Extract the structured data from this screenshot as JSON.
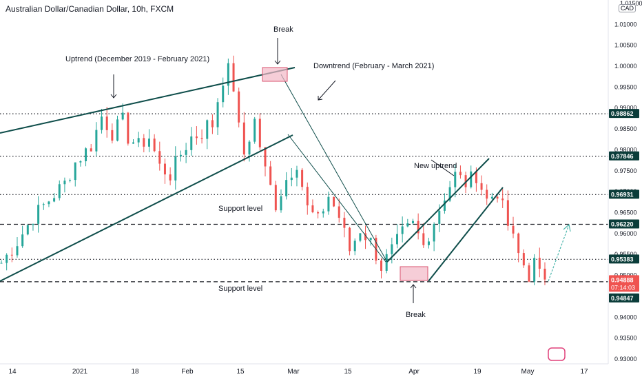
{
  "header": {
    "title": "Australian Dollar/Canadian Dollar, 10h, FXCM",
    "currency_top": "1.01500",
    "currency_badge": "CAD"
  },
  "colors": {
    "bull": "#26a69a",
    "bear": "#ef5350",
    "line": "#0e4d4a",
    "box_fill": "#f2b8c6",
    "box_stroke": "#d9536f",
    "price_current": "#ef5350",
    "label_bg": "#0b3d3a",
    "arrow": "#4db6ac"
  },
  "annotations": {
    "uptrend": "Uptrend (December 2019 - February 2021)",
    "downtrend": "Downtrend (February - March 2021)",
    "break_top": "Break",
    "break_bottom": "Break",
    "new_uptrend": "New uptrend",
    "support_upper": "Support level",
    "support_lower": "Support level"
  },
  "chart_data": {
    "type": "candlestick",
    "symbol": "AUDCAD",
    "interval": "10h",
    "source": "FXCM",
    "ylim": [
      0.93,
      1.015
    ],
    "y_ticks": [
      "1.01000",
      "1.00500",
      "1.00000",
      "0.99500",
      "0.99000",
      "0.98500",
      "0.98000",
      "0.97500",
      "0.97000",
      "0.96500",
      "0.96000",
      "0.95500",
      "0.95000",
      "0.94500",
      "0.94000",
      "0.93500",
      "0.93000"
    ],
    "x_ticks": [
      "14",
      "2021",
      "18",
      "Feb",
      "15",
      "Mar",
      "15",
      "Apr",
      "19",
      "May",
      "17"
    ],
    "price_labels": [
      {
        "value": "0.98862",
        "style": "level"
      },
      {
        "value": "0.97846",
        "style": "level"
      },
      {
        "value": "0.96931",
        "style": "level"
      },
      {
        "value": "0.96220",
        "style": "level"
      },
      {
        "value": "0.95383",
        "style": "level"
      },
      {
        "value": "0.94888",
        "style": "current",
        "countdown": "07:14:03"
      },
      {
        "value": "0.94847",
        "style": "level"
      }
    ],
    "horizontal_levels": [
      {
        "price": 0.98862,
        "style": "dotted"
      },
      {
        "price": 0.97846,
        "style": "dotted"
      },
      {
        "price": 0.96931,
        "style": "dotted"
      },
      {
        "price": 0.9622,
        "style": "dashed"
      },
      {
        "price": 0.95383,
        "style": "dotted"
      },
      {
        "price": 0.94847,
        "style": "dashed"
      }
    ],
    "close_path": [
      [
        0,
        0.953
      ],
      [
        3,
        0.958
      ],
      [
        6,
        0.964
      ],
      [
        9,
        0.968
      ],
      [
        12,
        0.972
      ],
      [
        14,
        0.977
      ],
      [
        17,
        0.981
      ],
      [
        19,
        0.988
      ],
      [
        21,
        0.984
      ],
      [
        23,
        0.987
      ],
      [
        24,
        0.983
      ],
      [
        26,
        0.981
      ],
      [
        28,
        0.983
      ],
      [
        30,
        0.976
      ],
      [
        32,
        0.974
      ],
      [
        34,
        0.979
      ],
      [
        36,
        0.983
      ],
      [
        38,
        0.984
      ],
      [
        39,
        0.986
      ],
      [
        40,
        0.986
      ],
      [
        41,
        0.992
      ],
      [
        42,
        0.997
      ],
      [
        43,
        0.999
      ],
      [
        44,
        0.995
      ],
      [
        45,
        0.985
      ],
      [
        46,
        0.979
      ],
      [
        48,
        0.987
      ],
      [
        50,
        0.975
      ],
      [
        52,
        0.967
      ],
      [
        54,
        0.973
      ],
      [
        56,
        0.977
      ],
      [
        58,
        0.966
      ],
      [
        60,
        0.963
      ],
      [
        62,
        0.969
      ],
      [
        64,
        0.964
      ],
      [
        66,
        0.956
      ],
      [
        68,
        0.961
      ],
      [
        70,
        0.958
      ],
      [
        72,
        0.952
      ],
      [
        74,
        0.956
      ],
      [
        76,
        0.96
      ],
      [
        78,
        0.962
      ],
      [
        80,
        0.957
      ],
      [
        82,
        0.963
      ],
      [
        84,
        0.969
      ],
      [
        86,
        0.974
      ],
      [
        88,
        0.972
      ],
      [
        90,
        0.974
      ],
      [
        92,
        0.968
      ],
      [
        94,
        0.97
      ],
      [
        96,
        0.962
      ],
      [
        98,
        0.955
      ],
      [
        100,
        0.95
      ],
      [
        101,
        0.953
      ],
      [
        102,
        0.95
      ],
      [
        103,
        0.949
      ]
    ],
    "projection": {
      "from": [
        103,
        0.9489
      ],
      "to": [
        108,
        0.9625
      ]
    }
  }
}
